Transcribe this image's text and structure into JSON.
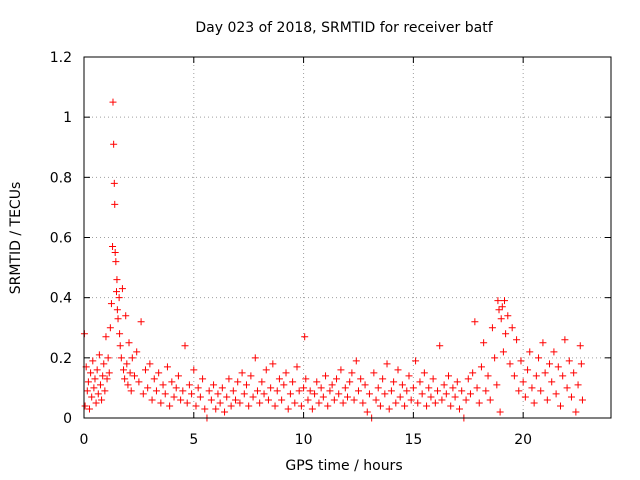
{
  "chart_data": {
    "type": "scatter",
    "title": "Day 023 of 2018, SRMTID for receiver batf",
    "xlabel": "GPS time / hours",
    "ylabel": "SRMTID / TECUs",
    "xlim": [
      0,
      24
    ],
    "ylim": [
      0,
      1.2
    ],
    "x_ticks": [
      0,
      5,
      10,
      15,
      20
    ],
    "x_tick_labels": [
      "0",
      "5",
      "10",
      "15",
      "20"
    ],
    "y_ticks": [
      0,
      0.2,
      0.4,
      0.6,
      0.8,
      1.0,
      1.2
    ],
    "y_tick_labels": [
      "0",
      "0.2",
      "0.4",
      "0.6",
      "0.8",
      "1",
      "1.2"
    ],
    "grid": true,
    "marker": "+",
    "series": [
      {
        "name": "SRMTID",
        "color": "#ff0000",
        "points": [
          [
            0.02,
            0.28
          ],
          [
            0.05,
            0.04
          ],
          [
            0.1,
            0.17
          ],
          [
            0.15,
            0.09
          ],
          [
            0.2,
            0.12
          ],
          [
            0.25,
            0.03
          ],
          [
            0.3,
            0.15
          ],
          [
            0.35,
            0.07
          ],
          [
            0.4,
            0.19
          ],
          [
            0.45,
            0.1
          ],
          [
            0.5,
            0.13
          ],
          [
            0.55,
            0.05
          ],
          [
            0.6,
            0.16
          ],
          [
            0.65,
            0.08
          ],
          [
            0.7,
            0.21
          ],
          [
            0.75,
            0.11
          ],
          [
            0.8,
            0.06
          ],
          [
            0.85,
            0.14
          ],
          [
            0.9,
            0.18
          ],
          [
            0.95,
            0.09
          ],
          [
            1.0,
            0.27
          ],
          [
            1.05,
            0.13
          ],
          [
            1.1,
            0.2
          ],
          [
            1.15,
            0.15
          ],
          [
            1.2,
            0.3
          ],
          [
            1.25,
            0.38
          ],
          [
            1.3,
            0.57
          ],
          [
            1.32,
            1.05
          ],
          [
            1.35,
            0.91
          ],
          [
            1.38,
            0.78
          ],
          [
            1.4,
            0.71
          ],
          [
            1.42,
            0.55
          ],
          [
            1.45,
            0.52
          ],
          [
            1.48,
            0.42
          ],
          [
            1.5,
            0.46
          ],
          [
            1.52,
            0.36
          ],
          [
            1.55,
            0.33
          ],
          [
            1.6,
            0.4
          ],
          [
            1.62,
            0.28
          ],
          [
            1.65,
            0.24
          ],
          [
            1.7,
            0.2
          ],
          [
            1.75,
            0.43
          ],
          [
            1.8,
            0.16
          ],
          [
            1.85,
            0.13
          ],
          [
            1.9,
            0.34
          ],
          [
            1.95,
            0.18
          ],
          [
            2.0,
            0.11
          ],
          [
            2.05,
            0.25
          ],
          [
            2.1,
            0.15
          ],
          [
            2.15,
            0.09
          ],
          [
            2.2,
            0.2
          ],
          [
            2.3,
            0.14
          ],
          [
            2.4,
            0.22
          ],
          [
            2.5,
            0.12
          ],
          [
            2.6,
            0.32
          ],
          [
            2.7,
            0.08
          ],
          [
            2.8,
            0.16
          ],
          [
            2.9,
            0.1
          ],
          [
            3.0,
            0.18
          ],
          [
            3.1,
            0.06
          ],
          [
            3.2,
            0.13
          ],
          [
            3.3,
            0.09
          ],
          [
            3.4,
            0.15
          ],
          [
            3.5,
            0.05
          ],
          [
            3.6,
            0.11
          ],
          [
            3.7,
            0.08
          ],
          [
            3.8,
            0.17
          ],
          [
            3.9,
            0.04
          ],
          [
            4.0,
            0.12
          ],
          [
            4.1,
            0.07
          ],
          [
            4.2,
            0.1
          ],
          [
            4.3,
            0.14
          ],
          [
            4.4,
            0.06
          ],
          [
            4.5,
            0.09
          ],
          [
            4.6,
            0.24
          ],
          [
            4.7,
            0.05
          ],
          [
            4.8,
            0.11
          ],
          [
            4.9,
            0.08
          ],
          [
            5.0,
            0.16
          ],
          [
            5.1,
            0.04
          ],
          [
            5.2,
            0.1
          ],
          [
            5.3,
            0.07
          ],
          [
            5.4,
            0.13
          ],
          [
            5.5,
            0.03
          ],
          [
            5.6,
            0.0
          ],
          [
            5.7,
            0.09
          ],
          [
            5.8,
            0.06
          ],
          [
            5.9,
            0.11
          ],
          [
            6.0,
            0.03
          ],
          [
            6.1,
            0.08
          ],
          [
            6.2,
            0.05
          ],
          [
            6.3,
            0.1
          ],
          [
            6.4,
            0.02
          ],
          [
            6.5,
            0.07
          ],
          [
            6.6,
            0.13
          ],
          [
            6.7,
            0.04
          ],
          [
            6.8,
            0.09
          ],
          [
            6.9,
            0.06
          ],
          [
            7.0,
            0.12
          ],
          [
            7.1,
            0.05
          ],
          [
            7.2,
            0.15
          ],
          [
            7.3,
            0.08
          ],
          [
            7.4,
            0.11
          ],
          [
            7.5,
            0.04
          ],
          [
            7.6,
            0.14
          ],
          [
            7.7,
            0.07
          ],
          [
            7.8,
            0.2
          ],
          [
            7.9,
            0.09
          ],
          [
            8.0,
            0.05
          ],
          [
            8.1,
            0.12
          ],
          [
            8.2,
            0.08
          ],
          [
            8.3,
            0.16
          ],
          [
            8.4,
            0.06
          ],
          [
            8.5,
            0.1
          ],
          [
            8.6,
            0.18
          ],
          [
            8.7,
            0.04
          ],
          [
            8.8,
            0.09
          ],
          [
            8.9,
            0.13
          ],
          [
            9.0,
            0.06
          ],
          [
            9.1,
            0.11
          ],
          [
            9.2,
            0.15
          ],
          [
            9.3,
            0.03
          ],
          [
            9.4,
            0.08
          ],
          [
            9.5,
            0.12
          ],
          [
            9.6,
            0.05
          ],
          [
            9.7,
            0.17
          ],
          [
            9.8,
            0.09
          ],
          [
            9.9,
            0.04
          ],
          [
            10.0,
            0.1
          ],
          [
            10.05,
            0.27
          ],
          [
            10.1,
            0.13
          ],
          [
            10.2,
            0.06
          ],
          [
            10.3,
            0.09
          ],
          [
            10.4,
            0.03
          ],
          [
            10.5,
            0.08
          ],
          [
            10.6,
            0.12
          ],
          [
            10.7,
            0.05
          ],
          [
            10.8,
            0.1
          ],
          [
            10.9,
            0.07
          ],
          [
            11.0,
            0.14
          ],
          [
            11.1,
            0.04
          ],
          [
            11.2,
            0.09
          ],
          [
            11.3,
            0.11
          ],
          [
            11.4,
            0.06
          ],
          [
            11.5,
            0.13
          ],
          [
            11.6,
            0.08
          ],
          [
            11.7,
            0.16
          ],
          [
            11.8,
            0.05
          ],
          [
            11.9,
            0.1
          ],
          [
            12.0,
            0.07
          ],
          [
            12.1,
            0.12
          ],
          [
            12.2,
            0.15
          ],
          [
            12.3,
            0.06
          ],
          [
            12.4,
            0.19
          ],
          [
            12.5,
            0.09
          ],
          [
            12.6,
            0.13
          ],
          [
            12.7,
            0.05
          ],
          [
            12.8,
            0.11
          ],
          [
            12.9,
            0.02
          ],
          [
            13.0,
            0.08
          ],
          [
            13.1,
            0.0
          ],
          [
            13.2,
            0.15
          ],
          [
            13.3,
            0.06
          ],
          [
            13.4,
            0.1
          ],
          [
            13.5,
            0.04
          ],
          [
            13.6,
            0.13
          ],
          [
            13.7,
            0.08
          ],
          [
            13.8,
            0.18
          ],
          [
            13.9,
            0.03
          ],
          [
            14.0,
            0.09
          ],
          [
            14.1,
            0.12
          ],
          [
            14.2,
            0.05
          ],
          [
            14.3,
            0.16
          ],
          [
            14.4,
            0.07
          ],
          [
            14.5,
            0.11
          ],
          [
            14.6,
            0.04
          ],
          [
            14.7,
            0.09
          ],
          [
            14.8,
            0.14
          ],
          [
            14.9,
            0.06
          ],
          [
            15.0,
            0.1
          ],
          [
            15.1,
            0.19
          ],
          [
            15.2,
            0.05
          ],
          [
            15.3,
            0.12
          ],
          [
            15.4,
            0.08
          ],
          [
            15.5,
            0.15
          ],
          [
            15.6,
            0.04
          ],
          [
            15.7,
            0.1
          ],
          [
            15.8,
            0.07
          ],
          [
            15.9,
            0.13
          ],
          [
            16.0,
            0.05
          ],
          [
            16.1,
            0.09
          ],
          [
            16.2,
            0.24
          ],
          [
            16.3,
            0.06
          ],
          [
            16.4,
            0.11
          ],
          [
            16.5,
            0.08
          ],
          [
            16.6,
            0.14
          ],
          [
            16.7,
            0.04
          ],
          [
            16.8,
            0.1
          ],
          [
            16.9,
            0.07
          ],
          [
            17.0,
            0.12
          ],
          [
            17.1,
            0.03
          ],
          [
            17.2,
            0.09
          ],
          [
            17.3,
            0.0
          ],
          [
            17.4,
            0.06
          ],
          [
            17.5,
            0.13
          ],
          [
            17.6,
            0.08
          ],
          [
            17.7,
            0.15
          ],
          [
            17.8,
            0.32
          ],
          [
            17.9,
            0.1
          ],
          [
            18.0,
            0.05
          ],
          [
            18.1,
            0.17
          ],
          [
            18.2,
            0.25
          ],
          [
            18.3,
            0.09
          ],
          [
            18.4,
            0.14
          ],
          [
            18.5,
            0.06
          ],
          [
            18.6,
            0.3
          ],
          [
            18.7,
            0.2
          ],
          [
            18.8,
            0.11
          ],
          [
            18.85,
            0.39
          ],
          [
            18.9,
            0.36
          ],
          [
            18.95,
            0.02
          ],
          [
            19.0,
            0.33
          ],
          [
            19.05,
            0.37
          ],
          [
            19.1,
            0.22
          ],
          [
            19.15,
            0.39
          ],
          [
            19.2,
            0.28
          ],
          [
            19.3,
            0.34
          ],
          [
            19.4,
            0.18
          ],
          [
            19.5,
            0.3
          ],
          [
            19.6,
            0.14
          ],
          [
            19.7,
            0.26
          ],
          [
            19.8,
            0.09
          ],
          [
            19.9,
            0.19
          ],
          [
            20.0,
            0.12
          ],
          [
            20.1,
            0.07
          ],
          [
            20.2,
            0.16
          ],
          [
            20.3,
            0.22
          ],
          [
            20.4,
            0.1
          ],
          [
            20.5,
            0.05
          ],
          [
            20.6,
            0.14
          ],
          [
            20.7,
            0.2
          ],
          [
            20.8,
            0.09
          ],
          [
            20.9,
            0.25
          ],
          [
            21.0,
            0.15
          ],
          [
            21.1,
            0.06
          ],
          [
            21.2,
            0.18
          ],
          [
            21.3,
            0.12
          ],
          [
            21.4,
            0.22
          ],
          [
            21.5,
            0.08
          ],
          [
            21.6,
            0.17
          ],
          [
            21.7,
            0.04
          ],
          [
            21.8,
            0.14
          ],
          [
            21.9,
            0.26
          ],
          [
            22.0,
            0.1
          ],
          [
            22.1,
            0.19
          ],
          [
            22.2,
            0.07
          ],
          [
            22.3,
            0.15
          ],
          [
            22.4,
            0.02
          ],
          [
            22.5,
            0.11
          ],
          [
            22.6,
            0.24
          ],
          [
            22.65,
            0.18
          ],
          [
            22.7,
            0.06
          ]
        ]
      }
    ]
  }
}
